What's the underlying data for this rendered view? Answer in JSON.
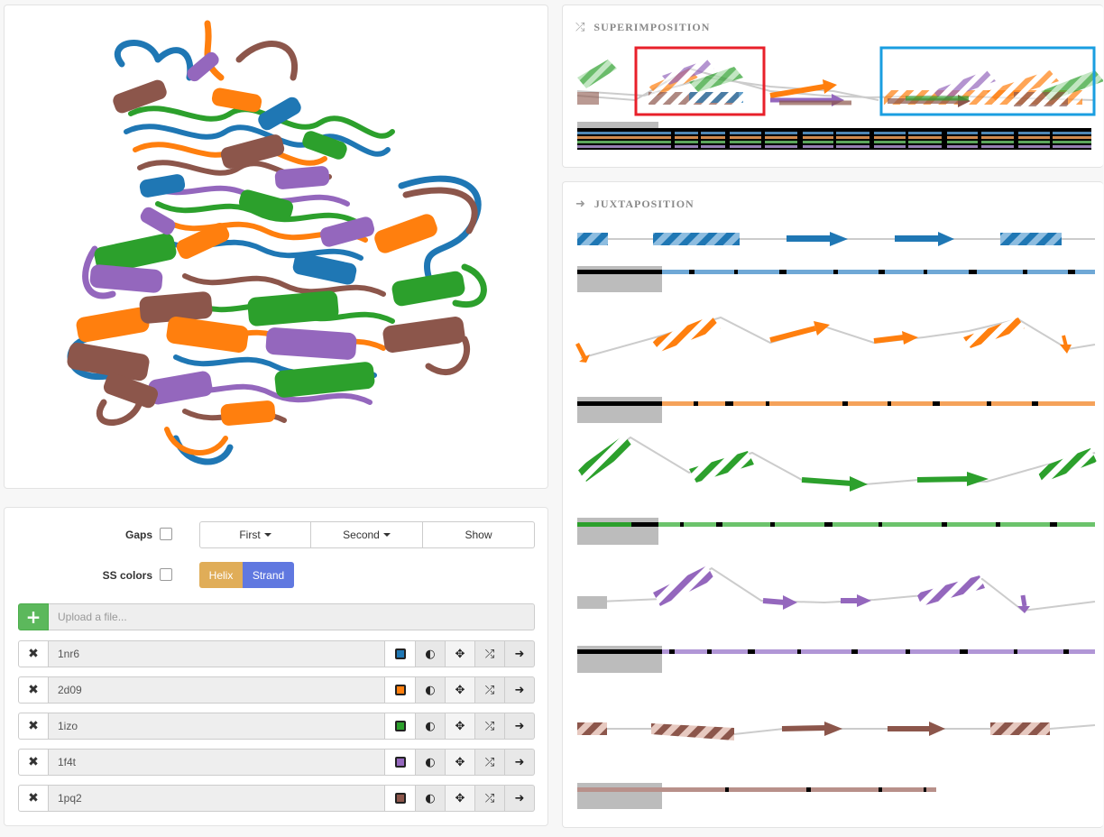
{
  "superimposition": {
    "title": "SUPERIMPOSITION",
    "icon": "shuffle-icon"
  },
  "juxtaposition": {
    "title": "JUXTAPOSITION",
    "icon": "arrow-right-icon"
  },
  "controls": {
    "gaps_label": "Gaps",
    "ss_colors_label": "SS colors",
    "first_label": "First",
    "second_label": "Second",
    "show_label": "Show",
    "helix_label": "Helix",
    "strand_label": "Strand",
    "helix_color": "#e0ad58",
    "strand_color": "#6078e0",
    "upload_placeholder": "Upload a file..."
  },
  "proteins": [
    {
      "id": "1nr6",
      "color": "#1f77b4"
    },
    {
      "id": "2d09",
      "color": "#ff7f0e"
    },
    {
      "id": "1izo",
      "color": "#2ca02c"
    },
    {
      "id": "1f4t",
      "color": "#9467bd"
    },
    {
      "id": "1pq2",
      "color": "#8c564b"
    }
  ],
  "highlight_colors": {
    "red_box": "#e8202a",
    "blue_box": "#1a9ee0"
  }
}
